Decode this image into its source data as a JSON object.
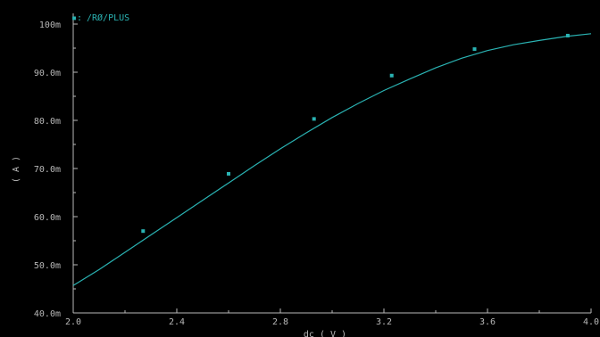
{
  "colors": {
    "background": "#000000",
    "trace": "#2ab3b3",
    "axis": "#b8b8b8"
  },
  "legend": {
    "marker": "▪:",
    "label": "/RØ/PLUS"
  },
  "chart_data": {
    "type": "line",
    "title": "",
    "xlabel": "dc ( V )",
    "ylabel": "( A )",
    "xlim": [
      2.0,
      4.0
    ],
    "ylim": [
      0.04,
      0.1
    ],
    "x_ticks": [
      2.0,
      2.4,
      2.8,
      3.2,
      3.6,
      4.0
    ],
    "x_tick_labels": [
      "2.0",
      "2.4",
      "2.8",
      "3.2",
      "3.6",
      "4.0"
    ],
    "y_ticks": [
      0.04,
      0.05,
      0.06,
      0.07,
      0.08,
      0.09,
      0.1
    ],
    "y_tick_labels": [
      "40.0m",
      "50.0m",
      "60.0m",
      "70.0m",
      "80.0m",
      "90.0m",
      "100m"
    ],
    "grid": false,
    "legend_position": "top-left",
    "series": [
      {
        "name": "/RØ/PLUS",
        "x": [
          2.0,
          2.1,
          2.2,
          2.3,
          2.4,
          2.5,
          2.6,
          2.7,
          2.8,
          2.9,
          3.0,
          3.1,
          3.2,
          3.3,
          3.4,
          3.5,
          3.6,
          3.7,
          3.8,
          3.9,
          4.0
        ],
        "y": [
          0.0457,
          0.049,
          0.0526,
          0.0562,
          0.0598,
          0.0634,
          0.067,
          0.0706,
          0.0741,
          0.0774,
          0.0806,
          0.0835,
          0.0862,
          0.0886,
          0.0909,
          0.0929,
          0.0945,
          0.0957,
          0.0966,
          0.0974,
          0.098
        ],
        "markers_x": [
          2.27,
          2.6,
          2.93,
          3.23,
          3.55,
          3.91
        ],
        "markers_y": [
          0.057,
          0.0689,
          0.0803,
          0.0893,
          0.0948,
          0.0976
        ]
      }
    ]
  }
}
